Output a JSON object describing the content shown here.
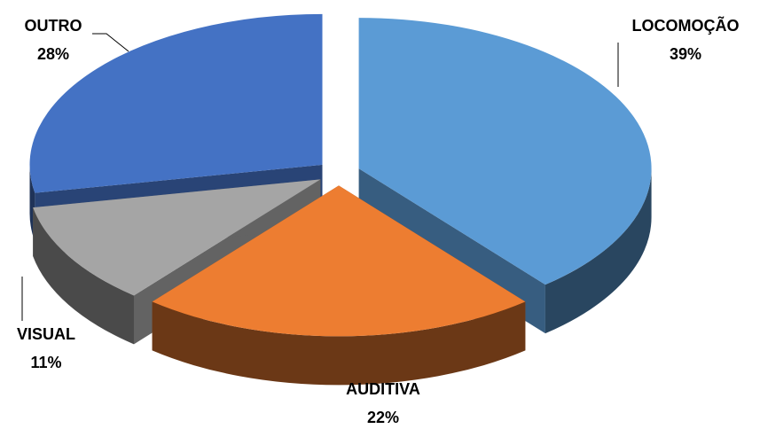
{
  "chart_data": {
    "type": "pie",
    "categories": [
      "LOCOMOÇÃO",
      "AUDITIVA",
      "VISUAL",
      "OUTRO"
    ],
    "values": [
      39,
      22,
      11,
      28
    ],
    "value_labels": [
      "39%",
      "22%",
      "11%",
      "28%"
    ],
    "colors": [
      "#5b9bd5",
      "#ed7d31",
      "#a5a5a5",
      "#4472c4"
    ]
  }
}
